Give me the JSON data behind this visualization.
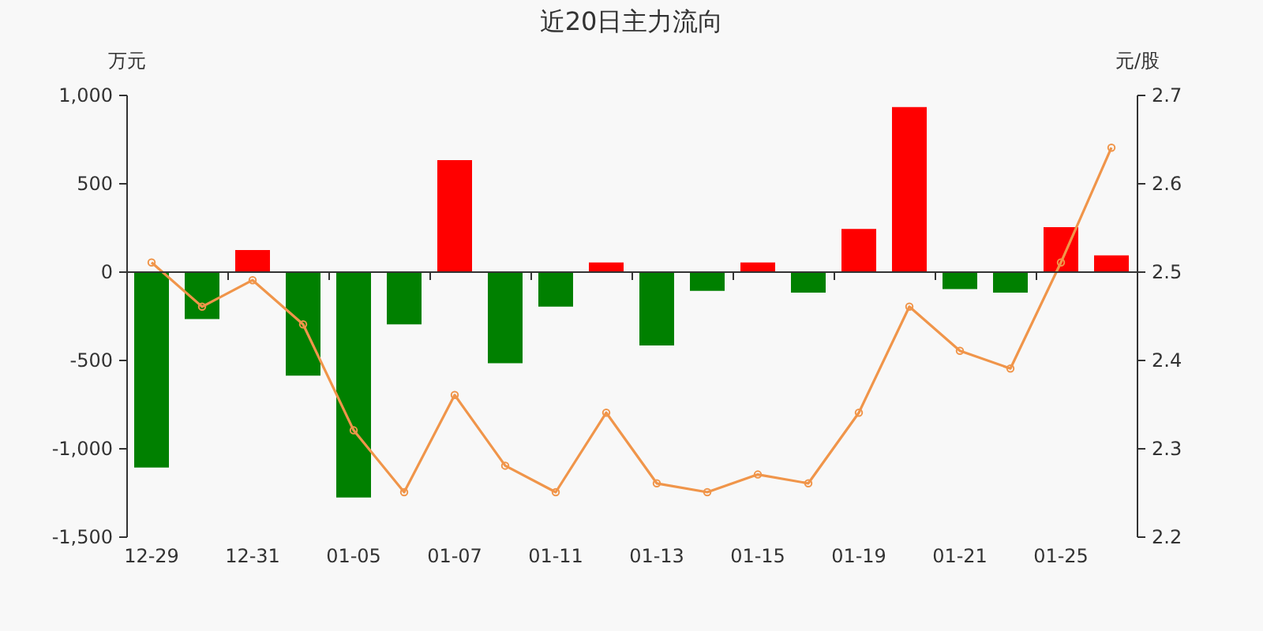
{
  "chart_data": {
    "type": "bar",
    "title": "近20日主力流向",
    "ylabel": "万元",
    "y2label": "元/股",
    "categories": [
      "12-29",
      null,
      "12-31",
      null,
      "01-05",
      null,
      "01-07",
      null,
      "01-11",
      null,
      "01-13",
      null,
      "01-15",
      null,
      "01-19",
      null,
      "01-21",
      null,
      "01-25",
      null
    ],
    "series": [
      {
        "colors": [
          "#008000",
          "#008000",
          "#ff0000",
          "#008000",
          "#008000",
          "#008000",
          "#ff0000",
          "#008000",
          "#008000",
          "#ff0000",
          "#008000",
          "#008000",
          "#ff0000",
          "#008000",
          "#ff0000",
          "#ff0000",
          "#008000",
          "#008000",
          "#ff0000",
          "#ff0000"
        ],
        "values": [
          -1110,
          -270,
          120,
          -590,
          -1280,
          -300,
          630,
          -520,
          -200,
          50,
          -420,
          -110,
          50,
          -120,
          240,
          930,
          -100,
          -120,
          250,
          90
        ]
      },
      {
        "type": "line",
        "axis": "y2",
        "color": "#f0954a",
        "values": [
          2.51,
          2.46,
          2.49,
          2.44,
          2.32,
          2.25,
          2.36,
          2.28,
          2.25,
          2.34,
          2.26,
          2.25,
          2.27,
          2.26,
          2.34,
          2.46,
          2.41,
          2.39,
          2.51,
          2.64
        ]
      }
    ],
    "ylim": [
      -1500,
      1000
    ],
    "yticks": [
      {
        "value": -1500,
        "label": "-1,500"
      },
      {
        "value": -1000,
        "label": "-1,000"
      },
      -500,
      0,
      500,
      {
        "value": 1000,
        "label": "1,000"
      }
    ],
    "y2lim": [
      2.2,
      2.7
    ],
    "y2ticks": [
      2.2,
      2.3,
      2.4,
      2.5,
      2.6,
      2.7
    ],
    "marker": "circle"
  }
}
